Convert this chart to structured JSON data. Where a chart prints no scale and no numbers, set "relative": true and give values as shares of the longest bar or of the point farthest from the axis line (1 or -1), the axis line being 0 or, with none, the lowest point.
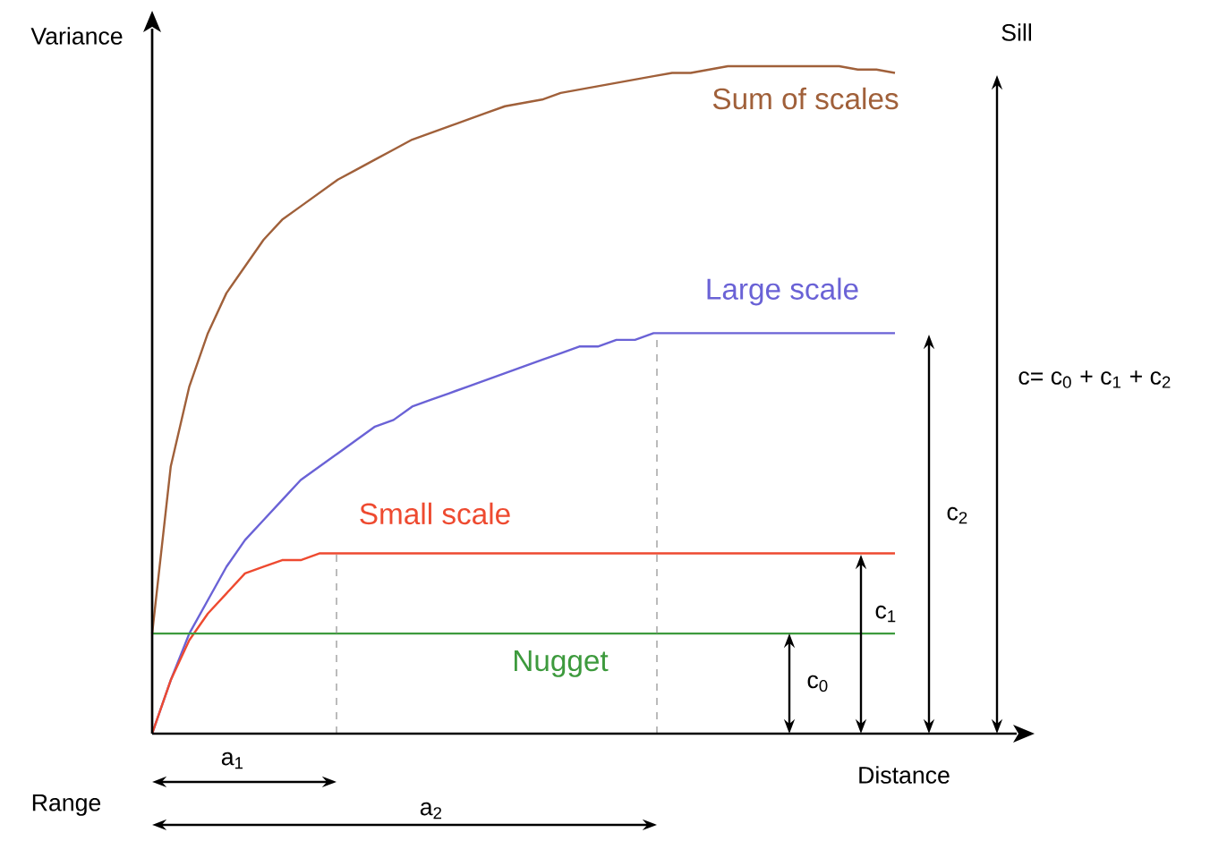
{
  "chart_data": {
    "type": "line",
    "relative": true,
    "xlabel": "Distance",
    "ylabel": "Variance",
    "categories": [
      null,
      null,
      null,
      null,
      null,
      null,
      null,
      null,
      null,
      null,
      null,
      null,
      null,
      null,
      null,
      null,
      null,
      null,
      null,
      null,
      null,
      null,
      null,
      null,
      null,
      null,
      null,
      null,
      null,
      null,
      null,
      null,
      null,
      null,
      null,
      null,
      null,
      null,
      null,
      null,
      null
    ],
    "series": [
      {
        "name": "Sum of scales",
        "color": "#a0603a",
        "values": [
          0.15,
          0.4,
          0.52,
          0.6,
          0.66,
          0.7,
          0.74,
          0.77,
          0.79,
          0.81,
          0.83,
          0.845,
          0.86,
          0.875,
          0.89,
          0.9,
          0.91,
          0.92,
          0.93,
          0.94,
          0.945,
          0.95,
          0.96,
          0.965,
          0.97,
          0.975,
          0.98,
          0.985,
          0.99,
          0.99,
          0.995,
          1.0,
          1.0,
          1.0,
          1.0,
          1.0,
          1.0,
          1.0,
          0.995,
          0.995,
          0.99
        ]
      },
      {
        "name": "Large scale",
        "color": "#6a62d6",
        "values": [
          0,
          0.08,
          0.15,
          0.2,
          0.25,
          0.29,
          0.32,
          0.35,
          0.38,
          0.4,
          0.42,
          0.44,
          0.46,
          0.47,
          0.49,
          0.5,
          0.51,
          0.52,
          0.53,
          0.54,
          0.55,
          0.56,
          0.57,
          0.58,
          0.58,
          0.59,
          0.59,
          0.6,
          0.6,
          0.6,
          0.6,
          0.6,
          0.6,
          0.6,
          0.6,
          0.6,
          0.6,
          0.6,
          0.6,
          0.6,
          0.6
        ]
      },
      {
        "name": "Small scale",
        "color": "#ee4a30",
        "values": [
          0,
          0.08,
          0.14,
          0.18,
          0.21,
          0.24,
          0.25,
          0.26,
          0.26,
          0.27,
          0.27,
          0.27,
          0.27,
          0.27,
          0.27,
          0.27,
          0.27,
          0.27,
          0.27,
          0.27,
          0.27,
          0.27,
          0.27,
          0.27,
          0.27,
          0.27,
          0.27,
          0.27,
          0.27,
          0.27,
          0.27,
          0.27,
          0.27,
          0.27,
          0.27,
          0.27,
          0.27,
          0.27,
          0.27,
          0.27,
          0.27
        ]
      },
      {
        "name": "Nugget",
        "color": "#3d9a3d",
        "values": [
          0.15,
          0.15,
          0.15,
          0.15,
          0.15,
          0.15,
          0.15,
          0.15,
          0.15,
          0.15,
          0.15,
          0.15,
          0.15,
          0.15,
          0.15,
          0.15,
          0.15,
          0.15,
          0.15,
          0.15,
          0.15,
          0.15,
          0.15,
          0.15,
          0.15,
          0.15,
          0.15,
          0.15,
          0.15,
          0.15,
          0.15,
          0.15,
          0.15,
          0.15,
          0.15,
          0.15,
          0.15,
          0.15,
          0.15,
          0.15,
          0.15
        ]
      }
    ],
    "annotations": [
      "Sill",
      "Range",
      "c$_{0}$",
      "c$_{1}$",
      "c$_{2}$",
      "c= c$_{0}$ + c$_{1}$ + c$_{2}$",
      "a$_{1}$",
      "a$_{2}$"
    ]
  }
}
